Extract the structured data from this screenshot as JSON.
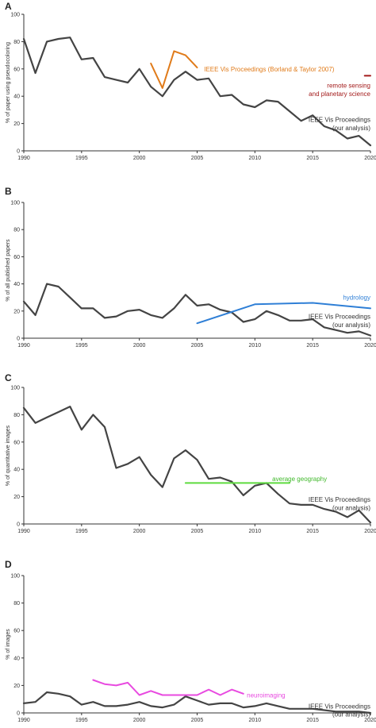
{
  "chart_data": [
    {
      "type": "line",
      "panel": "A",
      "ylabel": "% of paper using pseudocoloring",
      "ylim": [
        0,
        100
      ],
      "xlim": [
        1990,
        2020
      ],
      "yticks": [
        0,
        20,
        40,
        60,
        80,
        100
      ],
      "xticks": [
        1990,
        1995,
        2000,
        2005,
        2010,
        2015,
        2020
      ],
      "series": [
        {
          "color": "#444444",
          "x": [
            1990,
            1991,
            1992,
            1993,
            1994,
            1995,
            1996,
            1997,
            1998,
            1999,
            2000,
            2001,
            2002,
            2003,
            2004,
            2005,
            2006,
            2007,
            2008,
            2009,
            2010,
            2011,
            2012,
            2013,
            2014,
            2015,
            2016,
            2017,
            2018,
            2019,
            2020
          ],
          "y": [
            82,
            57,
            80,
            82,
            83,
            67,
            68,
            54,
            52,
            50,
            60,
            47,
            40,
            52,
            58,
            52,
            53,
            40,
            41,
            34,
            32,
            37,
            36,
            29,
            22,
            26,
            18,
            15,
            9,
            11,
            4
          ]
        },
        {
          "color": "#e07b1a",
          "x": [
            2001,
            2002,
            2003,
            2004,
            2005
          ],
          "y": [
            64,
            46,
            73,
            70,
            61
          ]
        },
        {
          "color": "#a31b1b",
          "x": [
            2019.5,
            2020
          ],
          "y": [
            55,
            55
          ]
        }
      ],
      "annotations": [
        {
          "text": "IEEE Vis Proceedings (Borland & Taylor 2007)",
          "color": "#e07b1a",
          "x": 2005.6,
          "y": 60
        },
        {
          "text": "remote sensing",
          "color": "#a31b1b",
          "x": 2020,
          "y": 48,
          "anchor": "end"
        },
        {
          "text": "and planetary science",
          "color": "#a31b1b",
          "x": 2020,
          "y": 42,
          "anchor": "end"
        },
        {
          "text": "IEEE Vis Proceedings",
          "color": "#333333",
          "x": 2020,
          "y": 23,
          "anchor": "end"
        },
        {
          "text": "(our analysis)",
          "color": "#333333",
          "x": 2020,
          "y": 17,
          "anchor": "end"
        }
      ]
    },
    {
      "type": "line",
      "panel": "B",
      "ylabel": "% of all published papers",
      "ylim": [
        0,
        100
      ],
      "xlim": [
        1990,
        2020
      ],
      "yticks": [
        0,
        20,
        40,
        60,
        80,
        100
      ],
      "xticks": [
        1990,
        1995,
        2000,
        2005,
        2010,
        2015,
        2020
      ],
      "series": [
        {
          "color": "#444444",
          "x": [
            1990,
            1991,
            1992,
            1993,
            1994,
            1995,
            1996,
            1997,
            1998,
            1999,
            2000,
            2001,
            2002,
            2003,
            2004,
            2005,
            2006,
            2007,
            2008,
            2009,
            2010,
            2011,
            2012,
            2013,
            2014,
            2015,
            2016,
            2017,
            2018,
            2019,
            2020
          ],
          "y": [
            27,
            17,
            40,
            38,
            30,
            22,
            22,
            15,
            16,
            20,
            21,
            17,
            15,
            22,
            32,
            24,
            25,
            21,
            19,
            12,
            14,
            20,
            17,
            13,
            13,
            14,
            8,
            6,
            4,
            5,
            2
          ]
        },
        {
          "color": "#2f7fd6",
          "x": [
            2005,
            2010,
            2015,
            2020
          ],
          "y": [
            11,
            25,
            26,
            22
          ]
        }
      ],
      "annotations": [
        {
          "text": "hydrology",
          "color": "#2f7fd6",
          "x": 2020,
          "y": 30,
          "anchor": "end"
        },
        {
          "text": "IEEE Vis Proceedings",
          "color": "#333333",
          "x": 2020,
          "y": 16,
          "anchor": "end"
        },
        {
          "text": "(our analysis)",
          "color": "#333333",
          "x": 2020,
          "y": 10,
          "anchor": "end"
        }
      ]
    },
    {
      "type": "line",
      "panel": "C",
      "ylabel": "% of quantitative images",
      "ylim": [
        0,
        100
      ],
      "xlim": [
        1990,
        2020
      ],
      "yticks": [
        0,
        20,
        40,
        60,
        80,
        100
      ],
      "xticks": [
        1990,
        1995,
        2000,
        2005,
        2010,
        2015,
        2020
      ],
      "series": [
        {
          "color": "#444444",
          "x": [
            1990,
            1991,
            1992,
            1993,
            1994,
            1995,
            1996,
            1997,
            1998,
            1999,
            2000,
            2001,
            2002,
            2003,
            2004,
            2005,
            2006,
            2007,
            2008,
            2009,
            2010,
            2011,
            2012,
            2013,
            2014,
            2015,
            2016,
            2017,
            2018,
            2019,
            2020
          ],
          "y": [
            85,
            74,
            78,
            82,
            86,
            69,
            80,
            71,
            41,
            44,
            49,
            36,
            27,
            48,
            54,
            47,
            33,
            34,
            31,
            21,
            28,
            30,
            22,
            15,
            14,
            14,
            11,
            9,
            5,
            10,
            1
          ]
        },
        {
          "color": "#5ddb3f",
          "x": [
            2004,
            2013
          ],
          "y": [
            30,
            30
          ]
        }
      ],
      "annotations": [
        {
          "text": "average geography",
          "color": "#3fb82a",
          "x": 2011.5,
          "y": 33
        },
        {
          "text": "IEEE Vis Proceedings",
          "color": "#333333",
          "x": 2020,
          "y": 18,
          "anchor": "end"
        },
        {
          "text": "(our analysis)",
          "color": "#333333",
          "x": 2020,
          "y": 12,
          "anchor": "end"
        }
      ]
    },
    {
      "type": "line",
      "panel": "D",
      "ylabel": "% of images",
      "ylim": [
        0,
        100
      ],
      "xlim": [
        1990,
        2020
      ],
      "yticks": [
        0,
        20,
        40,
        60,
        80,
        100
      ],
      "xticks": [
        1990,
        1995,
        2000,
        2005,
        2010,
        2015,
        2020
      ],
      "series": [
        {
          "color": "#444444",
          "x": [
            1990,
            1991,
            1992,
            1993,
            1994,
            1995,
            1996,
            1997,
            1998,
            1999,
            2000,
            2001,
            2002,
            2003,
            2004,
            2005,
            2006,
            2007,
            2008,
            2009,
            2010,
            2011,
            2012,
            2013,
            2014,
            2015,
            2016,
            2017,
            2018,
            2019,
            2020
          ],
          "y": [
            7,
            8,
            15,
            14,
            12,
            6,
            8,
            5,
            5,
            6,
            8,
            5,
            4,
            6,
            12,
            9,
            6,
            7,
            7,
            4,
            5,
            7,
            5,
            3,
            3,
            3,
            2,
            1,
            1,
            1,
            0
          ]
        },
        {
          "color": "#e84ae0",
          "x": [
            1996,
            1997,
            1998,
            1999,
            2000,
            2001,
            2002,
            2003,
            2004,
            2005,
            2006,
            2007,
            2008,
            2009
          ],
          "y": [
            24,
            21,
            20,
            22,
            13,
            16,
            13,
            13,
            13,
            13,
            17,
            13,
            17,
            14
          ]
        }
      ],
      "annotations": [
        {
          "text": "neuroimaging",
          "color": "#e84ae0",
          "x": 2009.3,
          "y": 13
        },
        {
          "text": "IEEE Vis Proceedings",
          "color": "#333333",
          "x": 2020,
          "y": 5,
          "anchor": "end"
        },
        {
          "text": "(our analysis)",
          "color": "#333333",
          "x": 2020,
          "y": -1,
          "anchor": "end"
        }
      ]
    }
  ]
}
